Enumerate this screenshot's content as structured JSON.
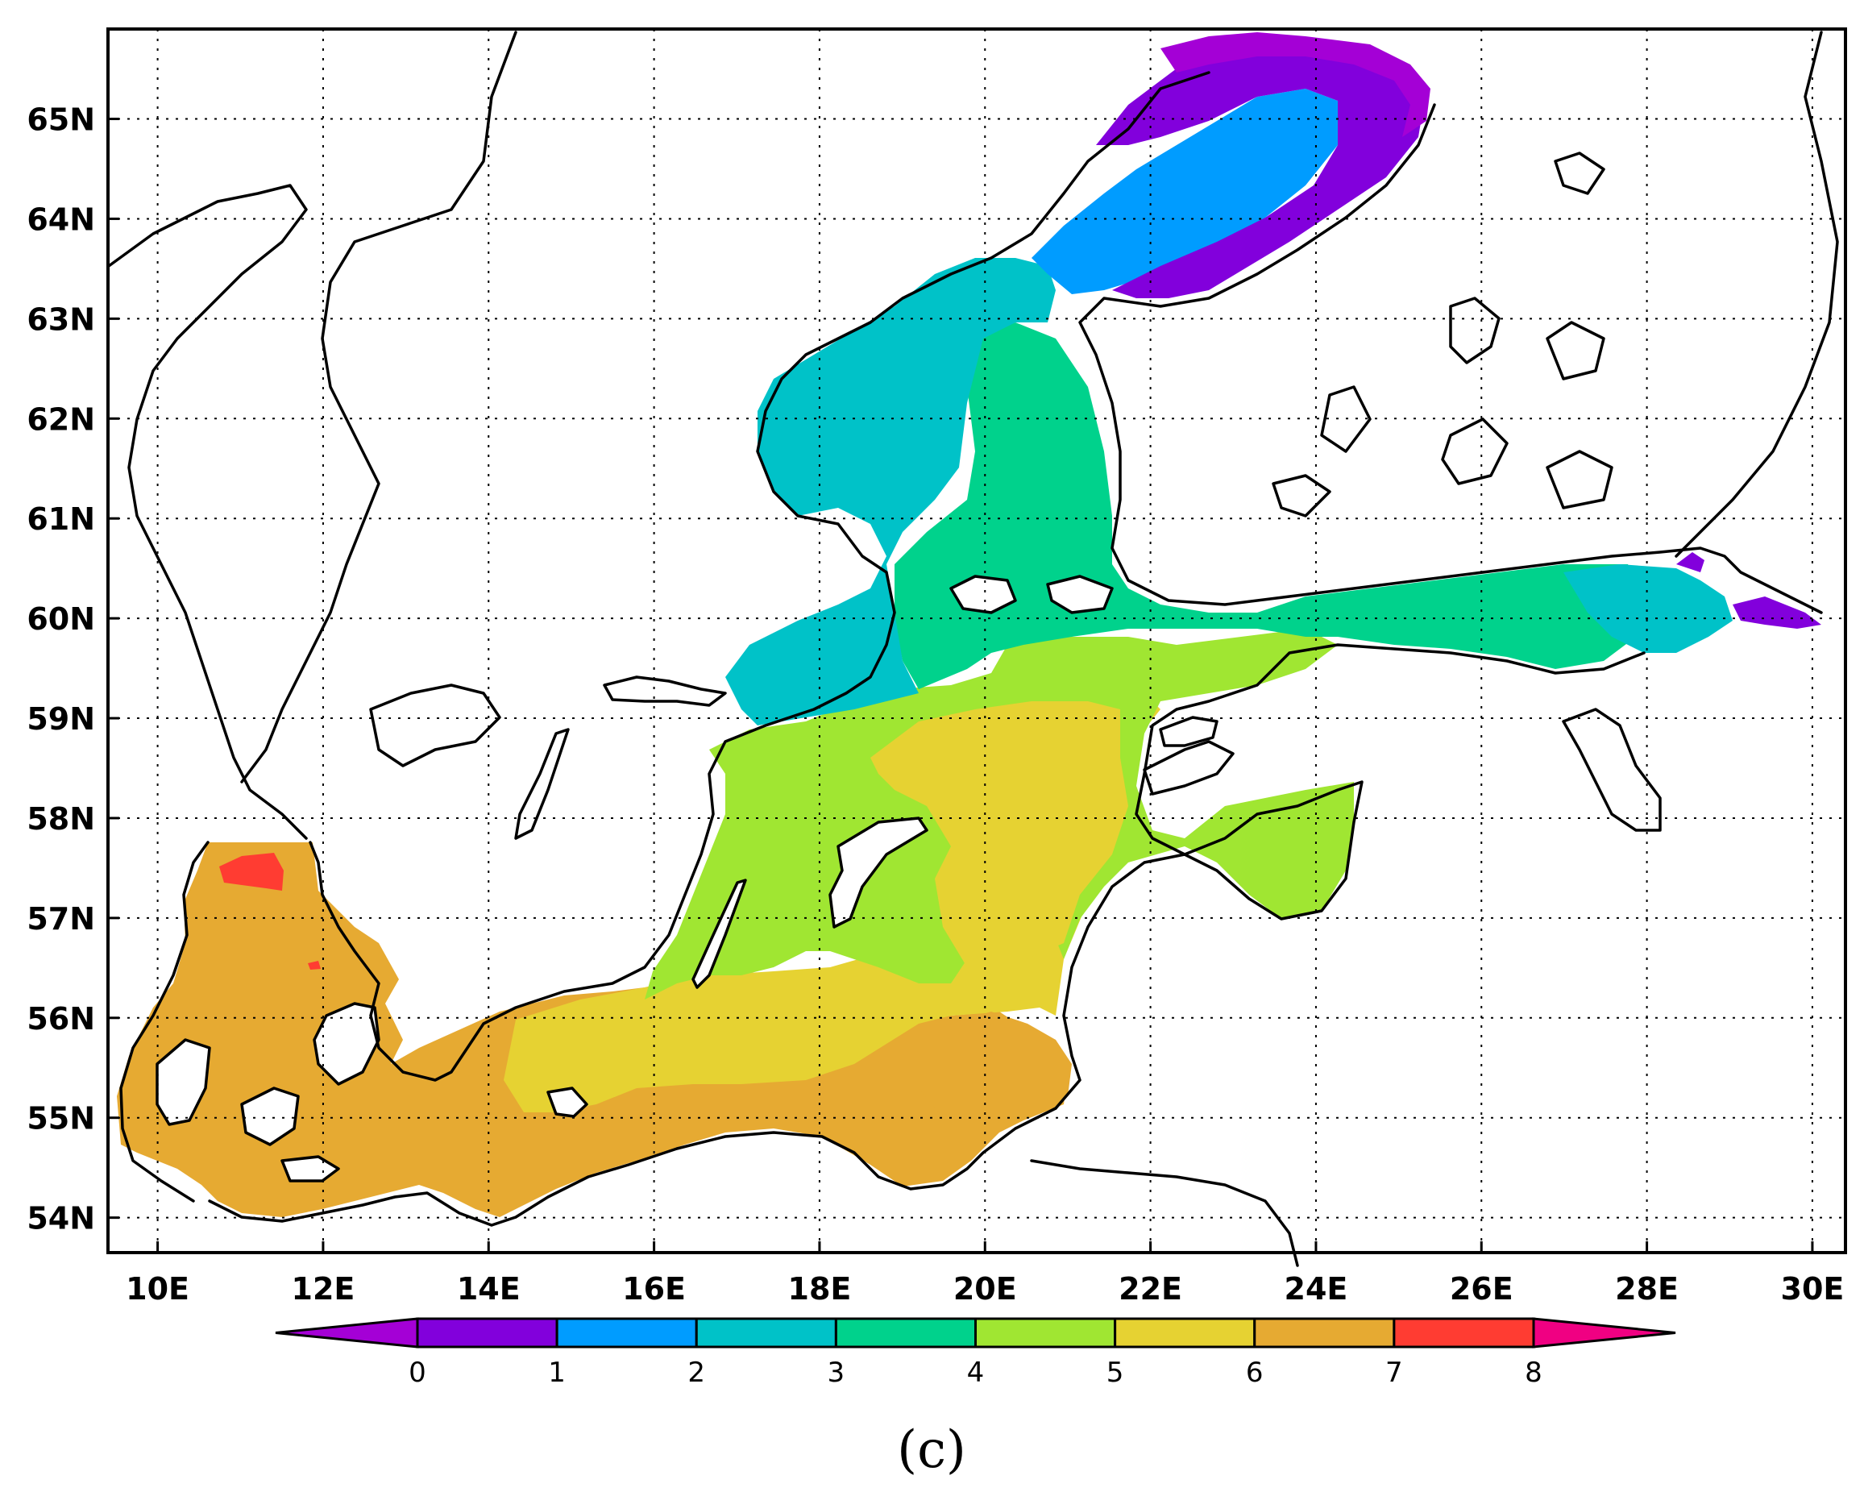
{
  "map": {
    "lat_labels": [
      "54N",
      "55N",
      "56N",
      "57N",
      "58N",
      "59N",
      "60N",
      "61N",
      "62N",
      "63N",
      "64N",
      "65N"
    ],
    "lon_labels": [
      "10E",
      "12E",
      "14E",
      "16E",
      "18E",
      "20E",
      "22E",
      "24E",
      "26E",
      "28E",
      "30E"
    ],
    "lat_values": [
      54,
      55,
      56,
      57,
      58,
      59,
      60,
      61,
      62,
      63,
      64,
      65
    ],
    "lon_values": [
      10,
      12,
      14,
      16,
      18,
      20,
      22,
      24,
      26,
      28,
      30
    ],
    "lon_range": [
      9.4,
      30.4
    ],
    "lat_range": [
      53.65,
      65.9
    ],
    "grid": "dotted",
    "panel_label": "(c)"
  },
  "colorbar": {
    "ticks": [
      "0",
      "1",
      "2",
      "3",
      "4",
      "5",
      "6",
      "7",
      "8"
    ],
    "colors": [
      "#a400d6",
      "#8200dc",
      "#009cff",
      "#00c2c8",
      "#00d28c",
      "#a0e632",
      "#e6d232",
      "#e6aa32",
      "#ff3c32",
      "#f00082"
    ]
  },
  "fields": {
    "purple_dark": "#8200dc",
    "purple_light": "#a400d6",
    "blue": "#009cff",
    "cyan": "#00c2c8",
    "green": "#00d28c",
    "lime": "#a0e632",
    "yellow": "#e6d232",
    "orange": "#e6aa32",
    "red": "#ff3c32"
  }
}
